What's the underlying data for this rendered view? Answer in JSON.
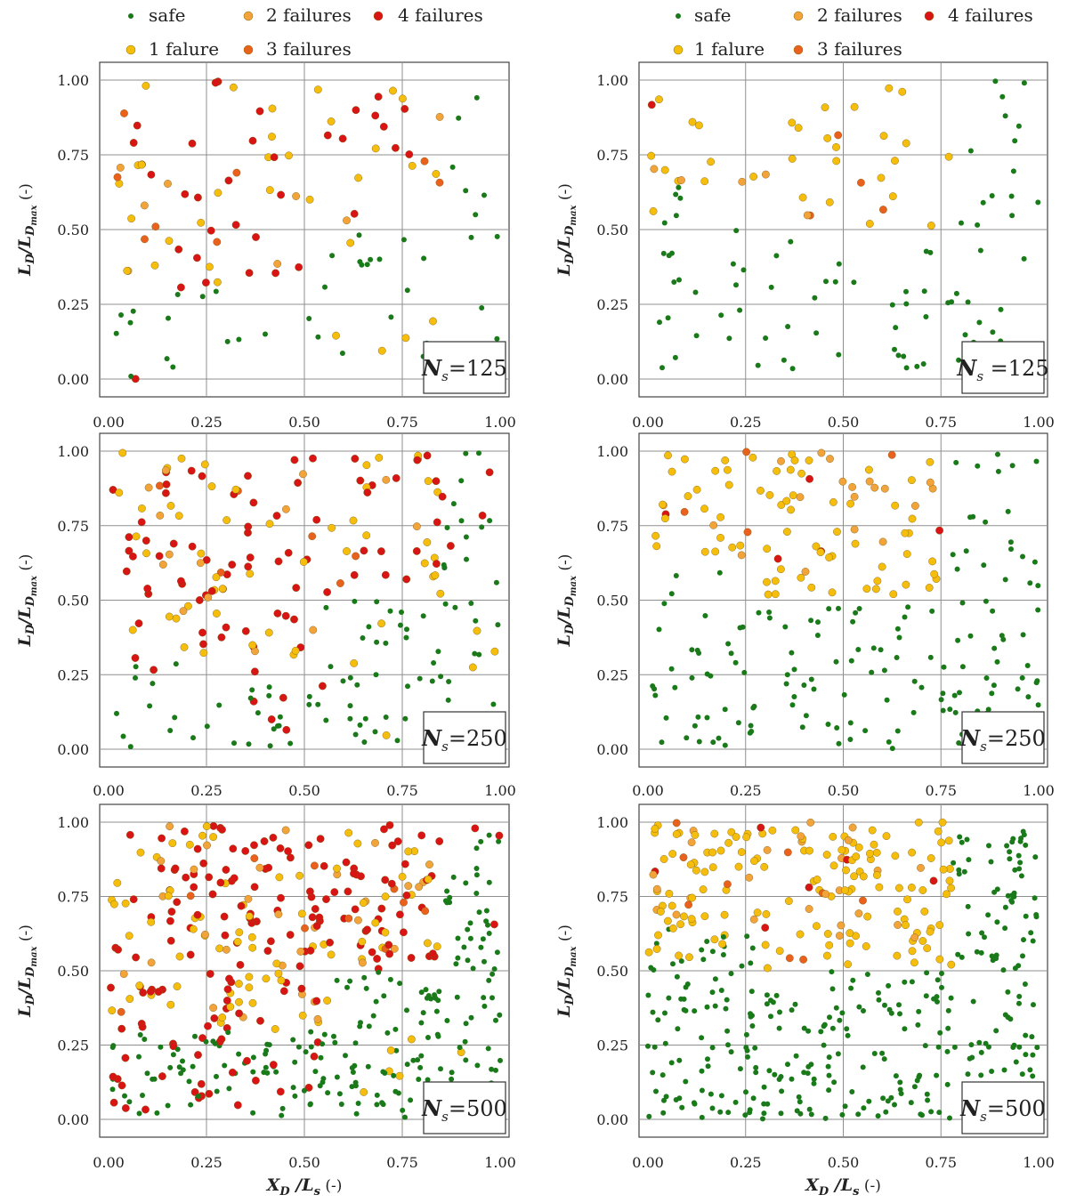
{
  "legend": {
    "items": [
      {
        "label": "safe",
        "color": "#1a7a1a"
      },
      {
        "label": "1 falure",
        "color": "#f5bd0c"
      },
      {
        "label": "2 failures",
        "color": "#f2a33a"
      },
      {
        "label": "3 failures",
        "color": "#e9611c"
      },
      {
        "label": "4 failures",
        "color": "#d91414"
      }
    ]
  },
  "axes": {
    "xlabel_main": "X",
    "xlabel_sub": "D",
    "xlabel_rest": " /L",
    "xlabel_sub2": "s",
    "xlabel_unit": " (-)",
    "ylabel_main": "L",
    "ylabel_sub": "D",
    "ylabel_mid": "/L",
    "ylabel_sub2": "D",
    "ylabel_subsub": "max",
    "ylabel_unit": " (-)",
    "xticks": [
      "0.00",
      "0.25",
      "0.50",
      "0.75",
      "1.00"
    ],
    "yticks": [
      "0.00",
      "0.25",
      "0.50",
      "0.75",
      "1.00"
    ]
  },
  "chart_data": [
    {
      "type": "scatter",
      "id": "left-125",
      "annotation": {
        "main": "N",
        "sub": "s",
        "value": "=125"
      },
      "xlim": [
        0,
        1
      ],
      "ylim": [
        0,
        1
      ],
      "grid": true,
      "legend": "top",
      "seed": 11,
      "n": 125
    },
    {
      "type": "scatter",
      "id": "right-125",
      "annotation": {
        "main": "N",
        "sub": "s",
        "value": " =125"
      },
      "xlim": [
        0,
        1
      ],
      "ylim": [
        0,
        1
      ],
      "grid": true,
      "legend": "top",
      "seed": 23,
      "n": 125
    },
    {
      "type": "scatter",
      "id": "left-250",
      "annotation": {
        "main": "N",
        "sub": "s",
        "value": "=250"
      },
      "xlim": [
        0,
        1
      ],
      "ylim": [
        0,
        1
      ],
      "grid": true,
      "seed": 37,
      "n": 250
    },
    {
      "type": "scatter",
      "id": "right-250",
      "annotation": {
        "main": "N",
        "sub": "s",
        "value": "=250"
      },
      "xlim": [
        0,
        1
      ],
      "ylim": [
        0,
        1
      ],
      "grid": true,
      "seed": 41,
      "n": 250
    },
    {
      "type": "scatter",
      "id": "left-500",
      "annotation": {
        "main": "N",
        "sub": "s",
        "value": "=500"
      },
      "xlim": [
        0,
        1
      ],
      "ylim": [
        0,
        1
      ],
      "grid": true,
      "seed": 53,
      "n": 500
    },
    {
      "type": "scatter",
      "id": "right-500",
      "annotation": {
        "main": "N",
        "sub": "s",
        "value": "=500"
      },
      "xlim": [
        0,
        1
      ],
      "ylim": [
        0,
        1
      ],
      "grid": true,
      "seed": 67,
      "n": 500
    }
  ]
}
